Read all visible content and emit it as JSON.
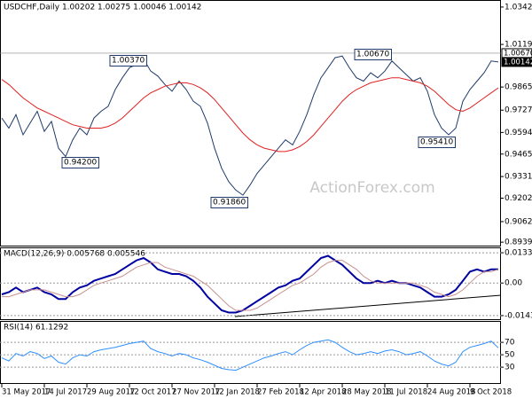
{
  "chart_data": [
    {
      "type": "line",
      "title": "USDCHF,Daily  1.00202 1.00275 1.00046 1.00142",
      "watermark": "ActionForex.com",
      "ylim": [
        0.8919,
        1.0384
      ],
      "yticks": [
        {
          "value": 1.0342,
          "label": "1.03420"
        },
        {
          "value": 1.0119,
          "label": "1.01190"
        },
        {
          "value": 0.9865,
          "label": "0.98650"
        },
        {
          "value": 0.9727,
          "label": "0.97270"
        },
        {
          "value": 0.9594,
          "label": "0.95940"
        },
        {
          "value": 0.9465,
          "label": "0.94650"
        },
        {
          "value": 0.9331,
          "label": "0.93310"
        },
        {
          "value": 0.9202,
          "label": "0.92020"
        },
        {
          "value": 0.9062,
          "label": "0.90620"
        },
        {
          "value": 0.89395,
          "label": "0.89395"
        }
      ],
      "price_labels": [
        {
          "value": 1.0067,
          "label": "1.00670"
        },
        {
          "value": 1.00142,
          "label": "1.00142"
        }
      ],
      "annotations": [
        "1.00370",
        "0.94200",
        "0.91860",
        "1.00670",
        "0.95410"
      ],
      "series": [
        {
          "color": "#1f3a6b",
          "values": [
            0.968,
            0.962,
            0.97,
            0.958,
            0.965,
            0.972,
            0.96,
            0.966,
            0.95,
            0.945,
            0.955,
            0.962,
            0.958,
            0.968,
            0.972,
            0.975,
            0.985,
            0.992,
            0.998,
            1.0,
            1.003,
            0.996,
            0.993,
            0.988,
            0.984,
            0.99,
            0.985,
            0.978,
            0.975,
            0.965,
            0.95,
            0.938,
            0.93,
            0.925,
            0.922,
            0.928,
            0.935,
            0.94,
            0.945,
            0.95,
            0.955,
            0.952,
            0.96,
            0.97,
            0.982,
            0.992,
            0.998,
            1.004,
            1.005,
            0.998,
            0.992,
            0.99,
            0.995,
            0.992,
            0.996,
            1.002,
            0.998,
            0.994,
            0.99,
            0.992,
            0.984,
            0.97,
            0.962,
            0.958,
            0.962,
            0.978,
            0.985,
            0.99,
            0.995,
            1.002,
            1.00142
          ]
        },
        {
          "color": "#e02020",
          "values": [
            0.991,
            0.988,
            0.984,
            0.98,
            0.977,
            0.974,
            0.972,
            0.97,
            0.968,
            0.966,
            0.964,
            0.963,
            0.962,
            0.962,
            0.962,
            0.963,
            0.965,
            0.968,
            0.972,
            0.976,
            0.98,
            0.983,
            0.985,
            0.987,
            0.988,
            0.989,
            0.989,
            0.988,
            0.986,
            0.983,
            0.979,
            0.974,
            0.969,
            0.964,
            0.959,
            0.955,
            0.952,
            0.95,
            0.949,
            0.948,
            0.948,
            0.949,
            0.951,
            0.954,
            0.958,
            0.963,
            0.968,
            0.973,
            0.978,
            0.982,
            0.985,
            0.987,
            0.989,
            0.99,
            0.991,
            0.992,
            0.992,
            0.991,
            0.99,
            0.989,
            0.987,
            0.984,
            0.98,
            0.976,
            0.973,
            0.972,
            0.974,
            0.977,
            0.98,
            0.983,
            0.986
          ]
        }
      ]
    },
    {
      "type": "line",
      "title": "MACD(12,26,9) 0.005768 0.005546",
      "ylim": [
        -0.0163,
        0.0153
      ],
      "yticks": [
        0.013319,
        {
          "value": 0,
          "label": "0.00"
        },
        -0.014323
      ],
      "series": [
        {
          "color": "#0000a0",
          "values": [
            -0.005,
            -0.004,
            -0.002,
            -0.004,
            -0.003,
            -0.002,
            -0.004,
            -0.005,
            -0.007,
            -0.007,
            -0.004,
            -0.002,
            -0.001,
            0.001,
            0.002,
            0.003,
            0.004,
            0.006,
            0.008,
            0.01,
            0.011,
            0.009,
            0.006,
            0.005,
            0.004,
            0.004,
            0.003,
            0.001,
            -0.002,
            -0.006,
            -0.009,
            -0.012,
            -0.013,
            -0.013,
            -0.012,
            -0.01,
            -0.008,
            -0.006,
            -0.004,
            -0.002,
            -0.001,
            0.001,
            0.002,
            0.005,
            0.008,
            0.011,
            0.012,
            0.01,
            0.008,
            0.005,
            0.002,
            0.0,
            0.0,
            0.001,
            0.0,
            0.001,
            0.0,
            0.0,
            -0.001,
            -0.002,
            -0.004,
            -0.006,
            -0.006,
            -0.005,
            -0.003,
            0.001,
            0.005,
            0.006,
            0.005,
            0.006,
            0.006
          ]
        },
        {
          "color": "#c89090",
          "values": [
            -0.006,
            -0.006,
            -0.005,
            -0.004,
            -0.003,
            -0.003,
            -0.003,
            -0.004,
            -0.005,
            -0.006,
            -0.006,
            -0.005,
            -0.003,
            -0.001,
            0.0,
            0.001,
            0.002,
            0.003,
            0.005,
            0.007,
            0.008,
            0.009,
            0.009,
            0.007,
            0.006,
            0.005,
            0.004,
            0.003,
            0.001,
            -0.001,
            -0.004,
            -0.007,
            -0.01,
            -0.012,
            -0.012,
            -0.012,
            -0.011,
            -0.009,
            -0.007,
            -0.005,
            -0.003,
            -0.001,
            0.0,
            0.002,
            0.004,
            0.007,
            0.009,
            0.01,
            0.01,
            0.008,
            0.006,
            0.003,
            0.001,
            0.0,
            0.0,
            0.0,
            0.0,
            0.0,
            0.0,
            -0.001,
            -0.002,
            -0.004,
            -0.005,
            -0.006,
            -0.005,
            -0.003,
            0.0,
            0.003,
            0.005,
            0.005,
            0.006
          ]
        }
      ]
    },
    {
      "type": "line",
      "title": "RSI(14) 61.1292",
      "ylim": [
        3,
        103
      ],
      "yticks": [
        70,
        50,
        30
      ],
      "categories": [
        "31 May 2017",
        null,
        null,
        null,
        null,
        null,
        "14 Jul 2017",
        null,
        null,
        null,
        null,
        null,
        "29 Aug 2017",
        null,
        null,
        null,
        null,
        null,
        "12 Oct 2017",
        null,
        null,
        null,
        null,
        null,
        "27 Nov 2017",
        null,
        null,
        null,
        null,
        null,
        "12 Jan 2018",
        null,
        null,
        null,
        null,
        null,
        "27 Feb 2018",
        null,
        null,
        null,
        null,
        null,
        "12 Apr 2018",
        null,
        null,
        null,
        null,
        null,
        "28 May 2018",
        null,
        null,
        null,
        null,
        null,
        "11 Jul 2018",
        null,
        null,
        null,
        null,
        null,
        "24 Aug 2018",
        null,
        null,
        null,
        null,
        null,
        "9 Oct 2018",
        null,
        null,
        null,
        null
      ],
      "series": [
        {
          "color": "#2e8fff",
          "values": [
            45,
            40,
            52,
            48,
            55,
            52,
            44,
            48,
            38,
            35,
            45,
            50,
            48,
            55,
            58,
            60,
            62,
            65,
            68,
            70,
            72,
            60,
            55,
            52,
            48,
            52,
            50,
            45,
            42,
            38,
            33,
            28,
            26,
            25,
            30,
            35,
            40,
            45,
            48,
            52,
            55,
            50,
            58,
            65,
            70,
            72,
            74,
            70,
            62,
            55,
            50,
            52,
            55,
            52,
            56,
            58,
            55,
            50,
            52,
            55,
            48,
            40,
            35,
            32,
            38,
            55,
            62,
            65,
            68,
            72,
            61.13
          ]
        }
      ]
    }
  ]
}
